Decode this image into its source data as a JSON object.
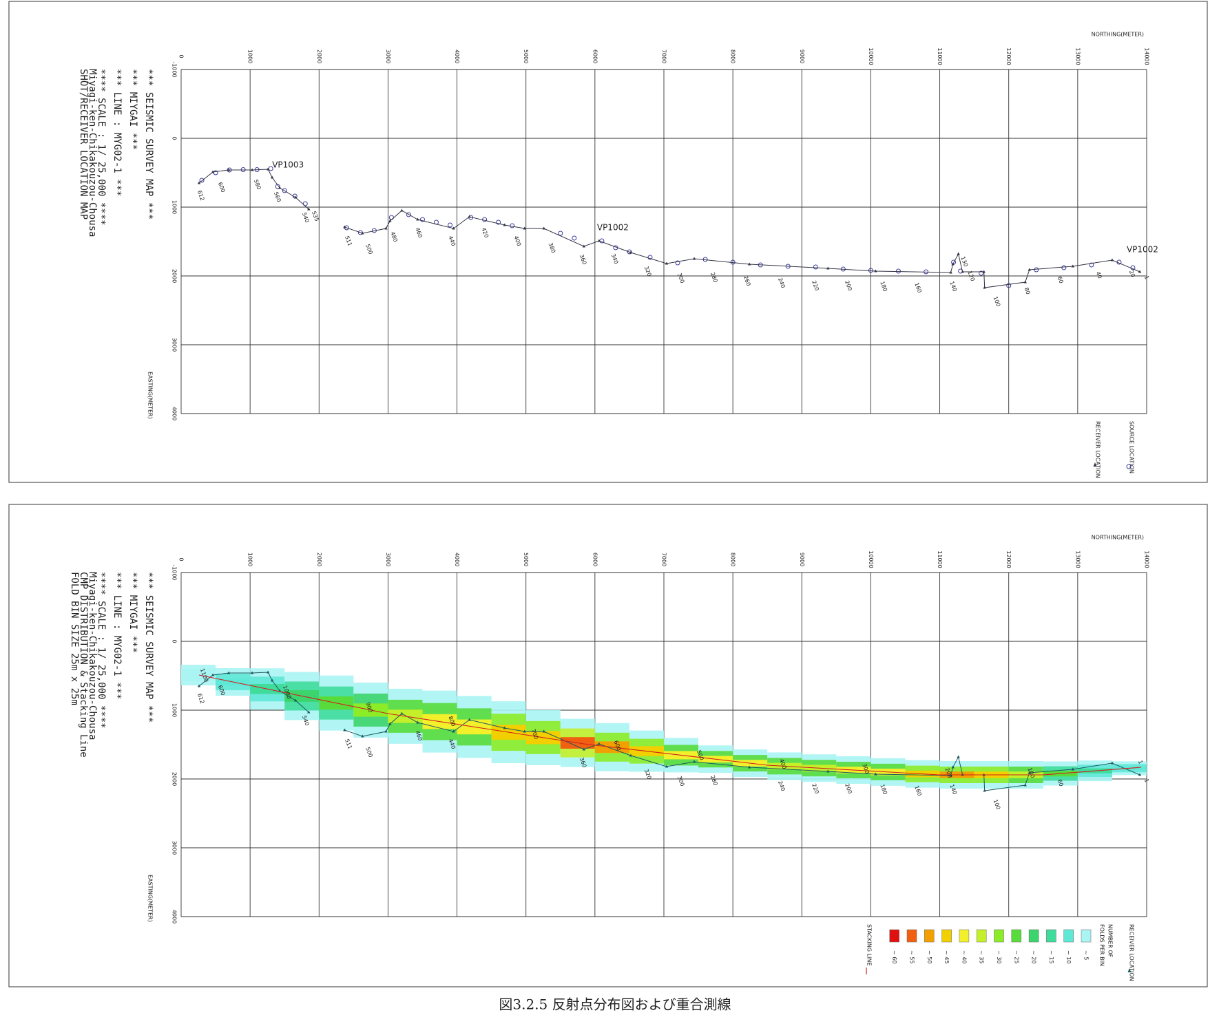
{
  "caption": "図3.2.5 反射点分布図および重合測線",
  "chart_data": [
    {
      "type": "line",
      "header": [
        "*** SEISMIC SURVEY MAP      ***",
        "*** MIYGAI                  ***",
        "*** LINE :  MYG02-1        ***",
        "**** SCALE : 1/ 25,000     ****",
        "Miyagi-ken-Chikakouzou-Chousa",
        "SHOT/RECEIVER LOCATION MAP"
      ],
      "x_label": "NORTHING(METER)",
      "y_label": "EASTING(METER)",
      "xlim": [
        0,
        14000
      ],
      "ylim": [
        -1000,
        4000
      ],
      "y_inverted": true,
      "grid": true,
      "xticks": [
        0,
        1000,
        2000,
        3000,
        4000,
        5000,
        6000,
        7000,
        8000,
        9000,
        10000,
        11000,
        12000,
        13000,
        14000
      ],
      "yticks": [
        -1000,
        0,
        1000,
        2000,
        3000,
        4000
      ],
      "series": [
        {
          "name": "SOURCE LOCATION",
          "color": "#3a3a9a",
          "marker": "circle",
          "x": [
            300,
            500,
            700,
            900,
            1100,
            1300,
            1400,
            1500,
            1650,
            1800,
            2400,
            2600,
            2800,
            3050,
            3300,
            3500,
            3700,
            3900,
            4200,
            4400,
            4600,
            4800,
            5500,
            5700,
            6100,
            6300,
            6500,
            6800,
            7200,
            7600,
            8000,
            8400,
            8800,
            9200,
            9600,
            10000,
            10400,
            10800,
            11200,
            11300,
            11600,
            12000,
            12400,
            12800,
            13200,
            13600,
            13800
          ],
          "values": [
            610,
            500,
            460,
            455,
            455,
            440,
            700,
            760,
            840,
            950,
            1300,
            1370,
            1340,
            1150,
            1110,
            1180,
            1220,
            1260,
            1150,
            1180,
            1220,
            1270,
            1380,
            1450,
            1490,
            1590,
            1650,
            1730,
            1810,
            1760,
            1800,
            1840,
            1860,
            1870,
            1900,
            1920,
            1930,
            1940,
            1800,
            1930,
            1960,
            2140,
            1910,
            1880,
            1840,
            1800,
            1880
          ]
        },
        {
          "name": "RECEIVER LOCATION",
          "color": "#333344",
          "marker": "triangle",
          "x": [
            260,
            460,
            690,
            1030,
            1260,
            1320,
            1430,
            1660,
            1850,
            2100,
            2370,
            2630,
            2970,
            3030,
            3200,
            3430,
            3950,
            4180,
            4690,
            4980,
            5260,
            5840,
            6060,
            6520,
            7040,
            7440,
            8240,
            9380,
            10070,
            11160,
            11190,
            11270,
            11330,
            11640,
            11650,
            12240,
            12300,
            12930,
            13500,
            13900
          ],
          "values": [
            650,
            490,
            460,
            460,
            450,
            570,
            720,
            860,
            1030,
            null,
            1290,
            1380,
            1310,
            1200,
            1050,
            1180,
            1310,
            1140,
            1260,
            1310,
            1310,
            1570,
            1490,
            1660,
            1820,
            1750,
            1830,
            1890,
            1930,
            1950,
            1830,
            1680,
            1940,
            1940,
            2170,
            2090,
            1910,
            1860,
            1770,
            1940
          ]
        }
      ],
      "annotations": [
        {
          "text": "VP1003",
          "x": 1320,
          "y": 390,
          "color": "#c03030"
        },
        {
          "text": "VP1002",
          "x": 6030,
          "y": 1300,
          "color": "#c03030"
        },
        {
          "text": "VP1002",
          "x": 13710,
          "y": 1620,
          "color": "#c03030"
        }
      ],
      "station_labels": {
        "labels": [
          "612",
          "600",
          "580",
          "560",
          "540",
          "535",
          "511",
          "500",
          "480",
          "460",
          "440",
          "420",
          "400",
          "380",
          "360",
          "340",
          "320",
          "300",
          "280",
          "260",
          "240",
          "220",
          "200",
          "180",
          "160",
          "140",
          "130",
          "120",
          "100",
          "80",
          "60",
          "40",
          "20",
          "1"
        ],
        "x": [
          260,
          560,
          1080,
          1370,
          1780,
          1920,
          2400,
          2700,
          3060,
          3420,
          3900,
          4380,
          4850,
          5350,
          5800,
          6260,
          6740,
          7220,
          7700,
          8180,
          8680,
          9170,
          9650,
          10160,
          10660,
          11170,
          11330,
          11430,
          11800,
          12250,
          12730,
          13290,
          13770,
          13990
        ],
        "y": [
          760,
          640,
          600,
          780,
          1080,
          1060,
          1420,
          1540,
          1360,
          1300,
          1420,
          1300,
          1420,
          1520,
          1690,
          1680,
          1860,
          1960,
          1950,
          2000,
          2030,
          2070,
          2070,
          2080,
          2100,
          2080,
          1720,
          1930,
          2300,
          2170,
          2010,
          1940,
          1920,
          2000
        ]
      }
    },
    {
      "type": "line",
      "header": [
        "*** SEISMIC SURVEY MAP      ***",
        "*** MIYGAI                  ***",
        "*** LINE :  MYG02-1        ***",
        "**** SCALE : 1/ 25,000     ****",
        "Miyagi-ken-Chikakouzou-Chousa",
        "CMP DISTRIBUTION & Stacking Line",
        "FOLD BIN SIZE   25m x 25m"
      ],
      "x_label": "NORTHING(METER)",
      "y_label": "EASTING(METER)",
      "xlim": [
        0,
        14000
      ],
      "ylim": [
        -1000,
        4000
      ],
      "y_inverted": true,
      "grid": true,
      "xticks": [
        0,
        1000,
        2000,
        3000,
        4000,
        5000,
        6000,
        7000,
        8000,
        9000,
        10000,
        11000,
        12000,
        13000,
        14000
      ],
      "yticks": [
        -1000,
        0,
        1000,
        2000,
        3000,
        4000
      ],
      "fold_title": [
        "NUMBER OF",
        "FOLDS PER BIN"
      ],
      "fold_scale": [
        {
          "value": 5,
          "label": "~ 5",
          "color": "#aaf4f4"
        },
        {
          "value": 10,
          "label": "~ 10",
          "color": "#5fe8d6"
        },
        {
          "value": 15,
          "label": "~ 15",
          "color": "#3fdc9c"
        },
        {
          "value": 20,
          "label": "~ 20",
          "color": "#3cd46c"
        },
        {
          "value": 25,
          "label": "~ 25",
          "color": "#58dc3c"
        },
        {
          "value": 30,
          "label": "~ 30",
          "color": "#8cec28"
        },
        {
          "value": 35,
          "label": "~ 35",
          "color": "#c4f02a"
        },
        {
          "value": 40,
          "label": "~ 40",
          "color": "#f2f02a"
        },
        {
          "value": 45,
          "label": "~ 45",
          "color": "#f2d000"
        },
        {
          "value": 50,
          "label": "~ 50",
          "color": "#f2a000"
        },
        {
          "value": 55,
          "label": "~ 55",
          "color": "#f06010"
        },
        {
          "value": 60,
          "label": "~ 60",
          "color": "#e01010"
        }
      ],
      "fold": {
        "x": [
          250,
          750,
          1250,
          1750,
          2250,
          2750,
          3250,
          3750,
          4250,
          4750,
          5250,
          5750,
          6250,
          6750,
          7250,
          7750,
          8250,
          8750,
          9250,
          9750,
          10250,
          10750,
          11250,
          11750,
          12250,
          12750,
          13250,
          13750
        ],
        "values": [
          5,
          10,
          15,
          20,
          25,
          30,
          35,
          40,
          40,
          45,
          45,
          55,
          50,
          45,
          40,
          40,
          40,
          35,
          35,
          40,
          40,
          45,
          50,
          45,
          35,
          25,
          15,
          10
        ],
        "widths": [
          300,
          400,
          600,
          700,
          800,
          800,
          800,
          900,
          900,
          900,
          800,
          700,
          700,
          600,
          500,
          400,
          400,
          400,
          400,
          400,
          400,
          400,
          400,
          400,
          400,
          350,
          300,
          200
        ]
      },
      "series": [
        {
          "name": "RECEIVER LOCATION",
          "color": "#1a5a60",
          "marker": "triangle",
          "x": [
            260,
            460,
            690,
            1030,
            1260,
            1320,
            1430,
            1660,
            1850,
            2100,
            2370,
            2630,
            2970,
            3030,
            3200,
            3430,
            3950,
            4180,
            4690,
            4980,
            5260,
            5840,
            6060,
            6520,
            7040,
            7440,
            8240,
            9380,
            10070,
            11160,
            11190,
            11270,
            11330,
            11640,
            11650,
            12240,
            12300,
            12930,
            13500,
            13900
          ],
          "values": [
            650,
            490,
            460,
            460,
            450,
            570,
            720,
            860,
            1030,
            null,
            1290,
            1380,
            1310,
            1200,
            1050,
            1180,
            1310,
            1140,
            1260,
            1310,
            1310,
            1570,
            1490,
            1660,
            1820,
            1750,
            1830,
            1890,
            1930,
            1950,
            1830,
            1680,
            1940,
            1940,
            2170,
            2090,
            1910,
            1860,
            1770,
            1940
          ]
        },
        {
          "name": "STACKING LINE",
          "color": "#d02020",
          "marker": "none",
          "x": [
            260,
            3000,
            5840,
            8500,
            10990,
            12500,
            13920
          ],
          "values": [
            490,
            1050,
            1490,
            1800,
            1940,
            1940,
            1830
          ]
        }
      ],
      "stacking_labels": {
        "labels": [
          "1100",
          "1000",
          "900",
          "800",
          "700",
          "600",
          "500",
          "400",
          "300",
          "200",
          "100",
          "1"
        ],
        "x": [
          300,
          1500,
          2700,
          3900,
          5100,
          6300,
          7500,
          8700,
          9900,
          11100,
          12300,
          13900
        ]
      },
      "station_labels": {
        "labels": [
          "612",
          "600",
          "540",
          "511",
          "500",
          "460",
          "440",
          "360",
          "320",
          "300",
          "280",
          "240",
          "220",
          "200",
          "180",
          "160",
          "140",
          "100",
          "60",
          "1"
        ],
        "x": [
          260,
          560,
          1780,
          2400,
          2700,
          3420,
          3900,
          5800,
          6740,
          7220,
          7700,
          8680,
          9170,
          9650,
          10160,
          10660,
          11170,
          11800,
          12730,
          13990
        ],
        "y": [
          760,
          640,
          1080,
          1420,
          1540,
          1300,
          1420,
          1690,
          1860,
          1960,
          1950,
          2030,
          2070,
          2070,
          2080,
          2100,
          2080,
          2300,
          2010,
          2000
        ]
      }
    }
  ]
}
